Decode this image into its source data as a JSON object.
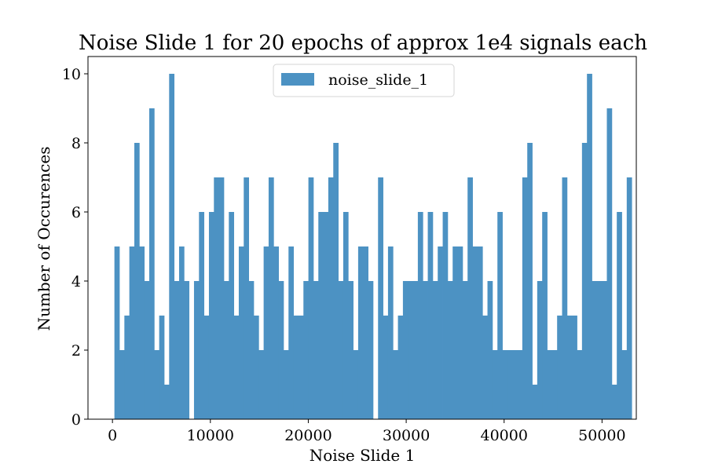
{
  "chart_data": {
    "type": "bar",
    "title": "Noise Slide 1 for 20 epochs of approx 1e4 signals each",
    "xlabel": "Noise Slide 1",
    "ylabel": "Number of Occurences",
    "xlim": [
      -2500,
      53500
    ],
    "ylim": [
      0,
      10.5
    ],
    "xticks": [
      0,
      10000,
      20000,
      30000,
      40000,
      50000
    ],
    "xtick_labels": [
      "0",
      "10000",
      "20000",
      "30000",
      "40000",
      "50000"
    ],
    "yticks": [
      0,
      2,
      4,
      6,
      8,
      10
    ],
    "ytick_labels": [
      "0",
      "2",
      "4",
      "6",
      "8",
      "10"
    ],
    "bin_start": 200,
    "bin_width": 508,
    "values": [
      5,
      2,
      3,
      5,
      8,
      5,
      4,
      9,
      2,
      3,
      1,
      10,
      4,
      5,
      4,
      0,
      4,
      6,
      3,
      6,
      7,
      7,
      4,
      6,
      3,
      5,
      7,
      4,
      3,
      2,
      5,
      7,
      5,
      4,
      2,
      5,
      3,
      3,
      4,
      7,
      4,
      6,
      6,
      7,
      8,
      4,
      6,
      4,
      2,
      5,
      5,
      4,
      0,
      7,
      3,
      5,
      2,
      3,
      4,
      4,
      4,
      6,
      4,
      6,
      4,
      5,
      6,
      4,
      5,
      5,
      4,
      7,
      5,
      5,
      3,
      4,
      2,
      6,
      2,
      2,
      2,
      2,
      7,
      8,
      1,
      4,
      6,
      2,
      2,
      3,
      7,
      3,
      3,
      2,
      8,
      10,
      4,
      4,
      4,
      9,
      1,
      6,
      2,
      7
    ],
    "series": [
      {
        "name": "noise_slide_1",
        "color": "#4c92c3"
      }
    ],
    "legend_location": "upper center",
    "grid": false
  }
}
